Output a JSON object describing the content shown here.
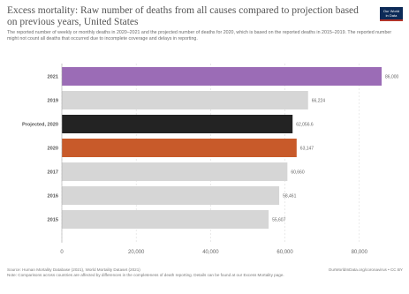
{
  "header": {
    "title": "Excess mortality: Raw number of deaths from all causes compared to projection based on previous years, United States",
    "subtitle": "The reported number of weekly or monthly deaths in 2020–2021 and the projected number of deaths for 2020, which is based on the reported deaths in 2015–2019. The reported number might not count all deaths that occurred due to incomplete coverage and delays in reporting."
  },
  "logo": {
    "line1": "Our World",
    "line2": "in Data",
    "bg_color": "#0c2a57",
    "accent_color": "#b2342a"
  },
  "footer": {
    "source": "Source: Human Mortality Database (2021), World Mortality Dataset (2021)",
    "note": "Note: Comparisons across countries are affected by differences in the completeness of death reporting. Details can be found at our Excess Mortality page.",
    "link": "OurWorldInData.org/coronavirus • CC BY"
  },
  "chart_data": {
    "type": "bar",
    "orientation": "horizontal",
    "categories": [
      "2021",
      "2019",
      "Projected, 2020",
      "2020",
      "2017",
      "2016",
      "2015"
    ],
    "values": [
      86000,
      66224,
      62056.6,
      63147,
      60660,
      58461,
      55607
    ],
    "value_labels": [
      "86,000",
      "66,224",
      "62,056.6",
      "63,147",
      "60,660",
      "58,461",
      "55,607"
    ],
    "colors": [
      "#9b6cb6",
      "#d6d6d6",
      "#232323",
      "#c85a2a",
      "#d6d6d6",
      "#d6d6d6",
      "#d6d6d6"
    ],
    "x_ticks": [
      0,
      20000,
      40000,
      60000,
      80000
    ],
    "x_tick_labels": [
      "0",
      "20,000",
      "40,000",
      "60,000",
      "80,000"
    ],
    "xlim": [
      0,
      86000
    ],
    "grid": true
  }
}
